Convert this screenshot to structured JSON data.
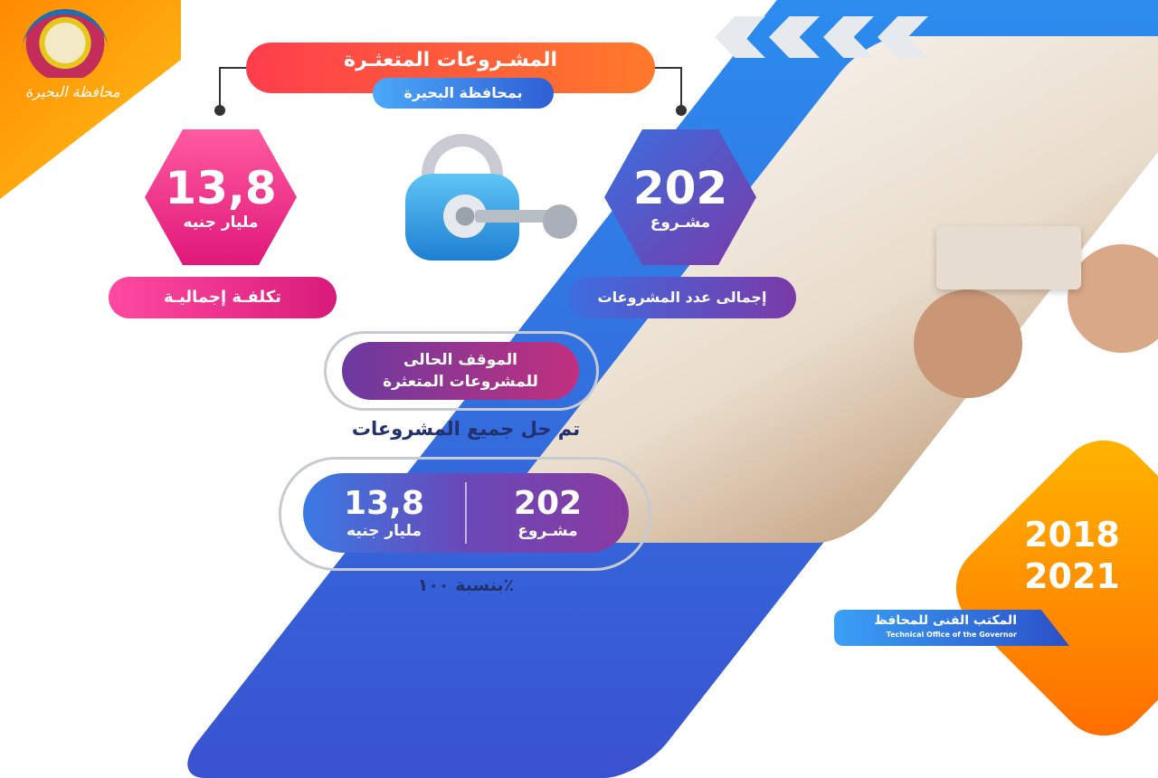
{
  "header": {
    "logo_text": "محافظة البحيرة",
    "logo_badge": "البحيرة",
    "title": "المشـروعات المتعثـرة",
    "subtitle": "بمحافظة البحيرة"
  },
  "cost": {
    "value": "13,8",
    "unit": "مليار جنيه",
    "label": "تكلفـة إجماليـة"
  },
  "count": {
    "value": "202",
    "unit": "مشـروع",
    "label": "إجمالى عدد المشروعات"
  },
  "status": {
    "line1": "الموقف الحالى",
    "line2": "للمشروعات المتعثرة",
    "solved": "تم حل جميع المشروعات"
  },
  "result": {
    "count_value": "202",
    "count_unit": "مشـروع",
    "cost_value": "13,8",
    "cost_unit": "مليار جنيه",
    "percentage": "بنسبة ١٠٠٪"
  },
  "years": {
    "start": "2018",
    "end": "2021"
  },
  "footer": {
    "office_ar": "المكتب الفنى للمحافظ",
    "office_en": "Technical Office of the Governor"
  },
  "colors": {
    "orange": "#ff8a00",
    "pink": "#e0187a",
    "blue": "#2f5fd4",
    "purple": "#7a3aa8",
    "navy": "#23306e"
  }
}
